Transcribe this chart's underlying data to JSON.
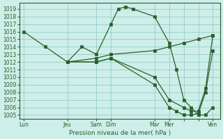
{
  "title": "Pression niveau de la mer( hPa )",
  "background_color": "#ceeee9",
  "grid_color": "#88c8c0",
  "line_color": "#2a5f2a",
  "ylim": [
    1004.5,
    1019.8
  ],
  "yticks": [
    1005,
    1006,
    1007,
    1008,
    1009,
    1010,
    1011,
    1012,
    1013,
    1014,
    1015,
    1016,
    1017,
    1018,
    1019
  ],
  "xtick_labels": [
    "Lun",
    "Jeu",
    "Sam",
    "Dim",
    "Mar",
    "Mer",
    "",
    "",
    "Ven"
  ],
  "xtick_positions": [
    0,
    3,
    5,
    6,
    9,
    10,
    11,
    12,
    13
  ],
  "xlim": [
    -0.3,
    13.5
  ],
  "line1_x": [
    0,
    1.5,
    3,
    4,
    5,
    6,
    6.5,
    7,
    7.5,
    9,
    10,
    10.5,
    11,
    11.5,
    12,
    12.5,
    13
  ],
  "line1_y": [
    1016,
    1014,
    1012,
    1014,
    1013,
    1017,
    1019.0,
    1019.3,
    1019.0,
    1018.0,
    1014.5,
    1011,
    1007,
    1006,
    1005,
    1005,
    1006
  ],
  "line2_x": [
    3,
    5,
    6,
    9,
    10,
    11,
    12,
    13
  ],
  "line2_y": [
    1012,
    1012.5,
    1013,
    1013.5,
    1014,
    1014.5,
    1015,
    1015.5
  ],
  "line3_x": [
    3,
    5,
    6,
    9,
    10,
    10.5,
    11,
    11.5,
    12,
    12.5,
    13
  ],
  "line3_y": [
    1012,
    1012,
    1012.5,
    1009,
    1006,
    1005.5,
    1005,
    1005,
    1005.2,
    1008,
    1013.5
  ],
  "line4_x": [
    3,
    5,
    6,
    9,
    10,
    11,
    11.5,
    12,
    12.5,
    13
  ],
  "line4_y": [
    1012,
    1012,
    1012.5,
    1010,
    1007,
    1006,
    1005.5,
    1005.5,
    1008.5,
    1015.5
  ]
}
